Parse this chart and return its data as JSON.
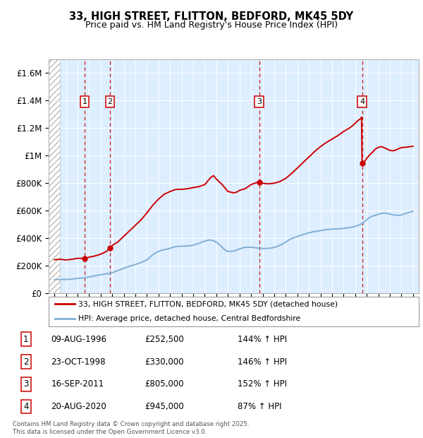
{
  "title": "33, HIGH STREET, FLITTON, BEDFORD, MK45 5DY",
  "subtitle": "Price paid vs. HM Land Registry's House Price Index (HPI)",
  "legend_line1": "33, HIGH STREET, FLITTON, BEDFORD, MK45 5DY (detached house)",
  "legend_line2": "HPI: Average price, detached house, Central Bedfordshire",
  "footer": "Contains HM Land Registry data © Crown copyright and database right 2025.\nThis data is licensed under the Open Government Licence v3.0.",
  "transactions": [
    {
      "num": 1,
      "date": "09-AUG-1996",
      "price": 252500,
      "hpi_pct": "144%",
      "year": 1996.6
    },
    {
      "num": 2,
      "date": "23-OCT-1998",
      "price": 330000,
      "hpi_pct": "146%",
      "year": 1998.8
    },
    {
      "num": 3,
      "date": "16-SEP-2011",
      "price": 805000,
      "hpi_pct": "152%",
      "year": 2011.7
    },
    {
      "num": 4,
      "date": "20-AUG-2020",
      "price": 945000,
      "hpi_pct": "87%",
      "year": 2020.6
    }
  ],
  "hpi_color": "#7fafd4",
  "price_color": "#cc0000",
  "vline_color": "#cc0000",
  "bg_plot": "#ddeeff",
  "ylim": [
    0,
    1700000
  ],
  "xlim": [
    1993.5,
    2025.5
  ],
  "yticks": [
    0,
    200000,
    400000,
    600000,
    800000,
    1000000,
    1200000,
    1400000,
    1600000
  ],
  "ytick_labels": [
    "£0",
    "£200K",
    "£400K",
    "£600K",
    "£800K",
    "£1M",
    "£1.2M",
    "£1.4M",
    "£1.6M"
  ],
  "hpi_data": [
    [
      1994.0,
      100000
    ],
    [
      1994.25,
      101000
    ],
    [
      1994.5,
      100500
    ],
    [
      1994.75,
      102000
    ],
    [
      1995.0,
      101000
    ],
    [
      1995.25,
      103000
    ],
    [
      1995.5,
      104000
    ],
    [
      1995.75,
      107000
    ],
    [
      1996.0,
      109000
    ],
    [
      1996.25,
      111000
    ],
    [
      1996.5,
      113000
    ],
    [
      1996.75,
      116000
    ],
    [
      1997.0,
      120000
    ],
    [
      1997.25,
      124000
    ],
    [
      1997.5,
      128000
    ],
    [
      1997.75,
      132000
    ],
    [
      1998.0,
      136000
    ],
    [
      1998.25,
      140000
    ],
    [
      1998.5,
      143000
    ],
    [
      1998.75,
      146000
    ],
    [
      1999.0,
      151000
    ],
    [
      1999.25,
      159000
    ],
    [
      1999.5,
      167000
    ],
    [
      1999.75,
      175000
    ],
    [
      2000.0,
      183000
    ],
    [
      2000.25,
      191000
    ],
    [
      2000.5,
      198000
    ],
    [
      2000.75,
      204000
    ],
    [
      2001.0,
      210000
    ],
    [
      2001.25,
      218000
    ],
    [
      2001.5,
      226000
    ],
    [
      2001.75,
      234000
    ],
    [
      2002.0,
      244000
    ],
    [
      2002.25,
      263000
    ],
    [
      2002.5,
      281000
    ],
    [
      2002.75,
      295000
    ],
    [
      2003.0,
      305000
    ],
    [
      2003.25,
      313000
    ],
    [
      2003.5,
      318000
    ],
    [
      2003.75,
      322000
    ],
    [
      2004.0,
      328000
    ],
    [
      2004.25,
      335000
    ],
    [
      2004.5,
      340000
    ],
    [
      2004.75,
      342000
    ],
    [
      2005.0,
      343000
    ],
    [
      2005.25,
      344000
    ],
    [
      2005.5,
      345000
    ],
    [
      2005.75,
      347000
    ],
    [
      2006.0,
      350000
    ],
    [
      2006.25,
      357000
    ],
    [
      2006.5,
      364000
    ],
    [
      2006.75,
      372000
    ],
    [
      2007.0,
      380000
    ],
    [
      2007.25,
      386000
    ],
    [
      2007.5,
      388000
    ],
    [
      2007.75,
      383000
    ],
    [
      2008.0,
      372000
    ],
    [
      2008.25,
      355000
    ],
    [
      2008.5,
      335000
    ],
    [
      2008.75,
      315000
    ],
    [
      2009.0,
      305000
    ],
    [
      2009.25,
      305000
    ],
    [
      2009.5,
      308000
    ],
    [
      2009.75,
      315000
    ],
    [
      2010.0,
      323000
    ],
    [
      2010.25,
      330000
    ],
    [
      2010.5,
      335000
    ],
    [
      2010.75,
      336000
    ],
    [
      2011.0,
      335000
    ],
    [
      2011.25,
      333000
    ],
    [
      2011.5,
      330000
    ],
    [
      2011.75,
      328000
    ],
    [
      2012.0,
      326000
    ],
    [
      2012.25,
      326000
    ],
    [
      2012.5,
      327000
    ],
    [
      2012.75,
      330000
    ],
    [
      2013.0,
      334000
    ],
    [
      2013.25,
      341000
    ],
    [
      2013.5,
      350000
    ],
    [
      2013.75,
      360000
    ],
    [
      2014.0,
      373000
    ],
    [
      2014.25,
      387000
    ],
    [
      2014.5,
      398000
    ],
    [
      2014.75,
      406000
    ],
    [
      2015.0,
      413000
    ],
    [
      2015.25,
      420000
    ],
    [
      2015.5,
      427000
    ],
    [
      2015.75,
      434000
    ],
    [
      2016.0,
      440000
    ],
    [
      2016.25,
      445000
    ],
    [
      2016.5,
      449000
    ],
    [
      2016.75,
      452000
    ],
    [
      2017.0,
      456000
    ],
    [
      2017.25,
      460000
    ],
    [
      2017.5,
      463000
    ],
    [
      2017.75,
      465000
    ],
    [
      2018.0,
      467000
    ],
    [
      2018.25,
      468000
    ],
    [
      2018.5,
      469000
    ],
    [
      2018.75,
      470000
    ],
    [
      2019.0,
      472000
    ],
    [
      2019.25,
      475000
    ],
    [
      2019.5,
      478000
    ],
    [
      2019.75,
      482000
    ],
    [
      2020.0,
      487000
    ],
    [
      2020.25,
      494000
    ],
    [
      2020.5,
      504000
    ],
    [
      2020.75,
      518000
    ],
    [
      2021.0,
      535000
    ],
    [
      2021.25,
      551000
    ],
    [
      2021.5,
      561000
    ],
    [
      2021.75,
      568000
    ],
    [
      2022.0,
      574000
    ],
    [
      2022.25,
      580000
    ],
    [
      2022.5,
      583000
    ],
    [
      2022.75,
      581000
    ],
    [
      2023.0,
      576000
    ],
    [
      2023.25,
      571000
    ],
    [
      2023.5,
      568000
    ],
    [
      2023.75,
      567000
    ],
    [
      2024.0,
      570000
    ],
    [
      2024.25,
      577000
    ],
    [
      2024.5,
      585000
    ],
    [
      2024.75,
      591000
    ],
    [
      2025.0,
      597000
    ]
  ],
  "price_data": [
    [
      1994.0,
      245000
    ],
    [
      1994.5,
      248000
    ],
    [
      1995.0,
      243000
    ],
    [
      1995.5,
      248000
    ],
    [
      1996.0,
      255000
    ],
    [
      1996.5,
      255000
    ],
    [
      1996.6,
      252500
    ],
    [
      1997.0,
      263000
    ],
    [
      1997.5,
      272000
    ],
    [
      1998.0,
      285000
    ],
    [
      1998.5,
      305000
    ],
    [
      1998.8,
      330000
    ],
    [
      1999.0,
      348000
    ],
    [
      1999.5,
      375000
    ],
    [
      2000.0,
      415000
    ],
    [
      2000.5,
      455000
    ],
    [
      2001.0,
      495000
    ],
    [
      2001.5,
      535000
    ],
    [
      2002.0,
      585000
    ],
    [
      2002.5,
      640000
    ],
    [
      2003.0,
      685000
    ],
    [
      2003.5,
      720000
    ],
    [
      2004.0,
      740000
    ],
    [
      2004.5,
      755000
    ],
    [
      2005.0,
      755000
    ],
    [
      2005.5,
      760000
    ],
    [
      2006.0,
      768000
    ],
    [
      2006.5,
      775000
    ],
    [
      2007.0,
      790000
    ],
    [
      2007.5,
      840000
    ],
    [
      2007.75,
      855000
    ],
    [
      2008.0,
      830000
    ],
    [
      2008.5,
      790000
    ],
    [
      2009.0,
      740000
    ],
    [
      2009.5,
      730000
    ],
    [
      2009.75,
      735000
    ],
    [
      2010.0,
      748000
    ],
    [
      2010.5,
      760000
    ],
    [
      2011.0,
      790000
    ],
    [
      2011.5,
      805000
    ],
    [
      2011.7,
      805000
    ],
    [
      2012.0,
      800000
    ],
    [
      2012.5,
      795000
    ],
    [
      2013.0,
      800000
    ],
    [
      2013.5,
      812000
    ],
    [
      2014.0,
      835000
    ],
    [
      2014.5,
      870000
    ],
    [
      2015.0,
      910000
    ],
    [
      2015.5,
      950000
    ],
    [
      2016.0,
      990000
    ],
    [
      2016.5,
      1030000
    ],
    [
      2017.0,
      1065000
    ],
    [
      2017.5,
      1095000
    ],
    [
      2018.0,
      1120000
    ],
    [
      2018.5,
      1145000
    ],
    [
      2019.0,
      1175000
    ],
    [
      2019.5,
      1200000
    ],
    [
      2019.75,
      1215000
    ],
    [
      2020.0,
      1235000
    ],
    [
      2020.25,
      1255000
    ],
    [
      2020.5,
      1270000
    ],
    [
      2020.55,
      1280000
    ],
    [
      2020.6,
      945000
    ],
    [
      2020.75,
      950000
    ],
    [
      2021.0,
      980000
    ],
    [
      2021.25,
      1005000
    ],
    [
      2021.5,
      1025000
    ],
    [
      2021.75,
      1048000
    ],
    [
      2022.0,
      1060000
    ],
    [
      2022.25,
      1065000
    ],
    [
      2022.5,
      1058000
    ],
    [
      2022.75,
      1048000
    ],
    [
      2023.0,
      1038000
    ],
    [
      2023.25,
      1035000
    ],
    [
      2023.5,
      1040000
    ],
    [
      2023.75,
      1050000
    ],
    [
      2024.0,
      1058000
    ],
    [
      2024.5,
      1062000
    ],
    [
      2025.0,
      1068000
    ]
  ]
}
